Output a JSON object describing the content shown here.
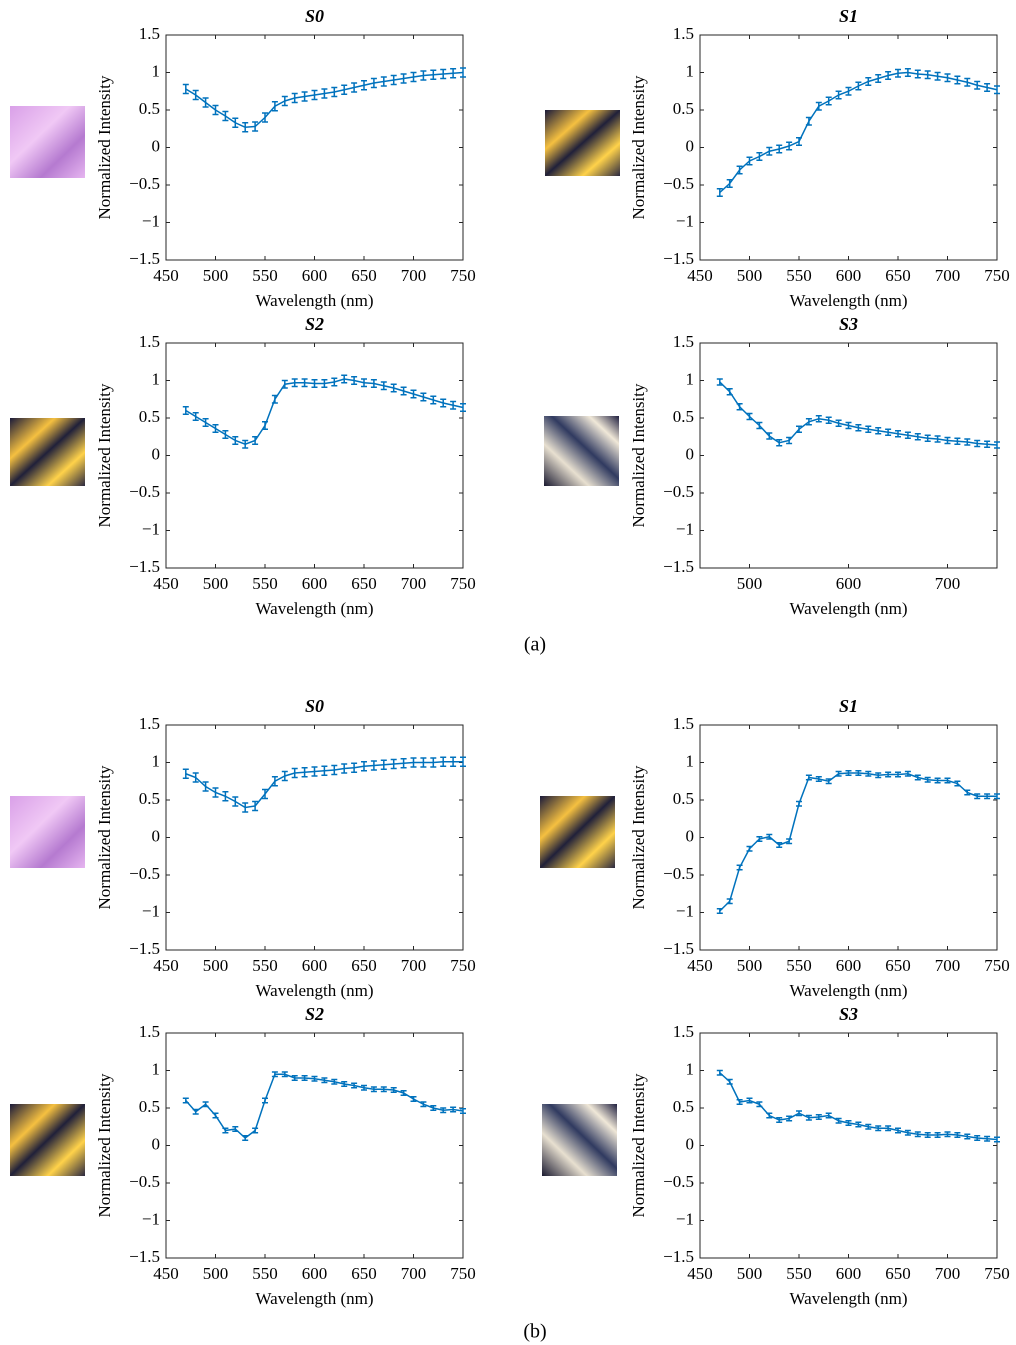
{
  "panel_labels": [
    "(a)",
    "(b)"
  ],
  "chart_data": [
    {
      "type": "line",
      "title": "S0",
      "xlabel": "Wavelength (nm)",
      "ylabel": "Normalized Intensity",
      "color": "#0072bd",
      "x": [
        470,
        480,
        490,
        500,
        510,
        520,
        530,
        540,
        550,
        560,
        570,
        580,
        590,
        600,
        610,
        620,
        630,
        640,
        650,
        660,
        670,
        680,
        690,
        700,
        710,
        720,
        730,
        740,
        750
      ],
      "values": [
        0.78,
        0.7,
        0.6,
        0.5,
        0.42,
        0.33,
        0.27,
        0.28,
        0.4,
        0.55,
        0.62,
        0.66,
        0.68,
        0.7,
        0.72,
        0.74,
        0.77,
        0.8,
        0.83,
        0.86,
        0.88,
        0.9,
        0.92,
        0.94,
        0.96,
        0.97,
        0.98,
        0.99,
        1.0
      ],
      "error": 0.06,
      "xlim": [
        450,
        750
      ],
      "xticks": [
        450,
        500,
        550,
        600,
        650,
        700,
        750
      ],
      "ylim": [
        -1.5,
        1.5
      ],
      "yticks": [
        {
          "value": -1.5,
          "label": "−1.5"
        },
        {
          "value": -1,
          "label": "−1"
        },
        {
          "value": -0.5,
          "label": "−0.5"
        },
        0,
        0.5,
        1,
        1.5
      ]
    },
    {
      "type": "line",
      "title": "S1",
      "xlabel": "Wavelength (nm)",
      "ylabel": "Normalized Intensity",
      "color": "#0072bd",
      "x": [
        470,
        480,
        490,
        500,
        510,
        520,
        530,
        540,
        550,
        560,
        570,
        580,
        590,
        600,
        610,
        620,
        630,
        640,
        650,
        660,
        670,
        680,
        690,
        700,
        710,
        720,
        730,
        740,
        750
      ],
      "values": [
        -0.6,
        -0.48,
        -0.3,
        -0.18,
        -0.12,
        -0.05,
        -0.02,
        0.02,
        0.08,
        0.35,
        0.55,
        0.62,
        0.7,
        0.75,
        0.82,
        0.88,
        0.92,
        0.96,
        0.99,
        1.0,
        0.98,
        0.97,
        0.95,
        0.93,
        0.9,
        0.87,
        0.83,
        0.8,
        0.77
      ],
      "error": 0.05,
      "xlim": [
        450,
        750
      ],
      "xticks": [
        450,
        500,
        550,
        600,
        650,
        700,
        750
      ],
      "ylim": [
        -1.5,
        1.5
      ],
      "yticks": [
        {
          "value": -1.5,
          "label": "−1.5"
        },
        {
          "value": -1,
          "label": "−1"
        },
        {
          "value": -0.5,
          "label": "−0.5"
        },
        0,
        0.5,
        1,
        1.5
      ]
    },
    {
      "type": "line",
      "title": "S2",
      "xlabel": "Wavelength (nm)",
      "ylabel": "Normalized Intensity",
      "color": "#0072bd",
      "x": [
        470,
        480,
        490,
        500,
        510,
        520,
        530,
        540,
        550,
        560,
        570,
        580,
        590,
        600,
        610,
        620,
        630,
        640,
        650,
        660,
        670,
        680,
        690,
        700,
        710,
        720,
        730,
        740,
        750
      ],
      "values": [
        0.6,
        0.52,
        0.44,
        0.36,
        0.28,
        0.2,
        0.15,
        0.2,
        0.4,
        0.75,
        0.95,
        0.97,
        0.97,
        0.96,
        0.96,
        0.98,
        1.02,
        1.0,
        0.97,
        0.96,
        0.93,
        0.9,
        0.86,
        0.82,
        0.78,
        0.74,
        0.7,
        0.67,
        0.64
      ],
      "error": 0.05,
      "xlim": [
        450,
        750
      ],
      "xticks": [
        450,
        500,
        550,
        600,
        650,
        700,
        750
      ],
      "ylim": [
        -1.5,
        1.5
      ],
      "yticks": [
        {
          "value": -1.5,
          "label": "−1.5"
        },
        {
          "value": -1,
          "label": "−1"
        },
        {
          "value": -0.5,
          "label": "−0.5"
        },
        0,
        0.5,
        1,
        1.5
      ]
    },
    {
      "type": "line",
      "title": "S3",
      "xlabel": "Wavelength (nm)",
      "ylabel": "Normalized Intensity",
      "color": "#0072bd",
      "x": [
        470,
        480,
        490,
        500,
        510,
        520,
        530,
        540,
        550,
        560,
        570,
        580,
        590,
        600,
        610,
        620,
        630,
        640,
        650,
        660,
        670,
        680,
        690,
        700,
        710,
        720,
        730,
        740,
        750
      ],
      "values": [
        0.98,
        0.85,
        0.65,
        0.52,
        0.4,
        0.26,
        0.17,
        0.2,
        0.35,
        0.45,
        0.49,
        0.47,
        0.43,
        0.4,
        0.37,
        0.35,
        0.33,
        0.31,
        0.29,
        0.27,
        0.25,
        0.23,
        0.22,
        0.2,
        0.19,
        0.18,
        0.16,
        0.15,
        0.14
      ],
      "error": 0.04,
      "xlim": [
        450,
        750
      ],
      "xticks": [
        500,
        600,
        700
      ],
      "ylim": [
        -1.5,
        1.5
      ],
      "yticks": [
        {
          "value": -1.5,
          "label": "−1.5"
        },
        {
          "value": -1,
          "label": "−1"
        },
        {
          "value": -0.5,
          "label": "−0.5"
        },
        0,
        0.5,
        1,
        1.5
      ]
    },
    {
      "type": "line",
      "title": "S0",
      "xlabel": "Wavelength (nm)",
      "ylabel": "Normalized Intensity",
      "color": "#0072bd",
      "x": [
        470,
        480,
        490,
        500,
        510,
        520,
        530,
        540,
        550,
        560,
        570,
        580,
        590,
        600,
        610,
        620,
        630,
        640,
        650,
        660,
        670,
        680,
        690,
        700,
        710,
        720,
        730,
        740,
        750
      ],
      "values": [
        0.85,
        0.8,
        0.68,
        0.6,
        0.55,
        0.48,
        0.4,
        0.42,
        0.58,
        0.75,
        0.82,
        0.86,
        0.87,
        0.88,
        0.89,
        0.9,
        0.92,
        0.93,
        0.95,
        0.96,
        0.97,
        0.98,
        0.99,
        1.0,
        1.0,
        1.0,
        1.01,
        1.01,
        1.01
      ],
      "error": 0.06,
      "xlim": [
        450,
        750
      ],
      "xticks": [
        450,
        500,
        550,
        600,
        650,
        700,
        750
      ],
      "ylim": [
        -1.5,
        1.5
      ],
      "yticks": [
        {
          "value": -1.5,
          "label": "−1.5"
        },
        {
          "value": -1,
          "label": "−1"
        },
        {
          "value": -0.5,
          "label": "−0.5"
        },
        0,
        0.5,
        1,
        1.5
      ]
    },
    {
      "type": "line",
      "title": "S1",
      "xlabel": "Wavelength (nm)",
      "ylabel": "Normalized Intensity",
      "color": "#0072bd",
      "x": [
        470,
        480,
        490,
        500,
        510,
        520,
        530,
        540,
        550,
        560,
        570,
        580,
        590,
        600,
        610,
        620,
        630,
        640,
        650,
        660,
        670,
        680,
        690,
        700,
        710,
        720,
        730,
        740,
        750
      ],
      "values": [
        -0.98,
        -0.85,
        -0.4,
        -0.15,
        -0.02,
        0.01,
        -0.1,
        -0.05,
        0.45,
        0.8,
        0.78,
        0.75,
        0.85,
        0.86,
        0.86,
        0.85,
        0.83,
        0.84,
        0.84,
        0.85,
        0.8,
        0.77,
        0.76,
        0.76,
        0.72,
        0.6,
        0.55,
        0.55,
        0.55
      ],
      "error": 0.03,
      "xlim": [
        450,
        750
      ],
      "xticks": [
        450,
        500,
        550,
        600,
        650,
        700,
        750
      ],
      "ylim": [
        -1.5,
        1.5
      ],
      "yticks": [
        {
          "value": -1.5,
          "label": "−1.5"
        },
        {
          "value": -1,
          "label": "−1"
        },
        {
          "value": -0.5,
          "label": "−0.5"
        },
        0,
        0.5,
        1,
        1.5
      ]
    },
    {
      "type": "line",
      "title": "S2",
      "xlabel": "Wavelength (nm)",
      "ylabel": "Normalized Intensity",
      "color": "#0072bd",
      "x": [
        470,
        480,
        490,
        500,
        510,
        520,
        530,
        540,
        550,
        560,
        570,
        580,
        590,
        600,
        610,
        620,
        630,
        640,
        650,
        660,
        670,
        680,
        690,
        700,
        710,
        720,
        730,
        740,
        750
      ],
      "values": [
        0.6,
        0.45,
        0.55,
        0.4,
        0.2,
        0.22,
        0.1,
        0.2,
        0.6,
        0.95,
        0.95,
        0.9,
        0.9,
        0.89,
        0.87,
        0.85,
        0.82,
        0.8,
        0.77,
        0.75,
        0.75,
        0.74,
        0.7,
        0.62,
        0.55,
        0.5,
        0.47,
        0.48,
        0.46
      ],
      "error": 0.03,
      "xlim": [
        450,
        750
      ],
      "xticks": [
        450,
        500,
        550,
        600,
        650,
        700,
        750
      ],
      "ylim": [
        -1.5,
        1.5
      ],
      "yticks": [
        {
          "value": -1.5,
          "label": "−1.5"
        },
        {
          "value": -1,
          "label": "−1"
        },
        {
          "value": -0.5,
          "label": "−0.5"
        },
        0,
        0.5,
        1,
        1.5
      ]
    },
    {
      "type": "line",
      "title": "S3",
      "xlabel": "Wavelength (nm)",
      "ylabel": "Normalized Intensity",
      "color": "#0072bd",
      "x": [
        470,
        480,
        490,
        500,
        510,
        520,
        530,
        540,
        550,
        560,
        570,
        580,
        590,
        600,
        610,
        620,
        630,
        640,
        650,
        660,
        670,
        680,
        690,
        700,
        710,
        720,
        730,
        740,
        750
      ],
      "values": [
        0.97,
        0.85,
        0.58,
        0.6,
        0.55,
        0.4,
        0.34,
        0.36,
        0.43,
        0.37,
        0.38,
        0.4,
        0.33,
        0.3,
        0.28,
        0.25,
        0.23,
        0.23,
        0.2,
        0.17,
        0.15,
        0.14,
        0.14,
        0.15,
        0.14,
        0.12,
        0.1,
        0.09,
        0.08
      ],
      "error": 0.03,
      "xlim": [
        450,
        750
      ],
      "xticks": [
        450,
        500,
        550,
        600,
        650,
        700,
        750
      ],
      "ylim": [
        -1.5,
        1.5
      ],
      "yticks": [
        {
          "value": -1.5,
          "label": "−1.5"
        },
        {
          "value": -1,
          "label": "−1"
        },
        {
          "value": -0.5,
          "label": "−0.5"
        },
        0,
        0.5,
        1,
        1.5
      ]
    }
  ]
}
